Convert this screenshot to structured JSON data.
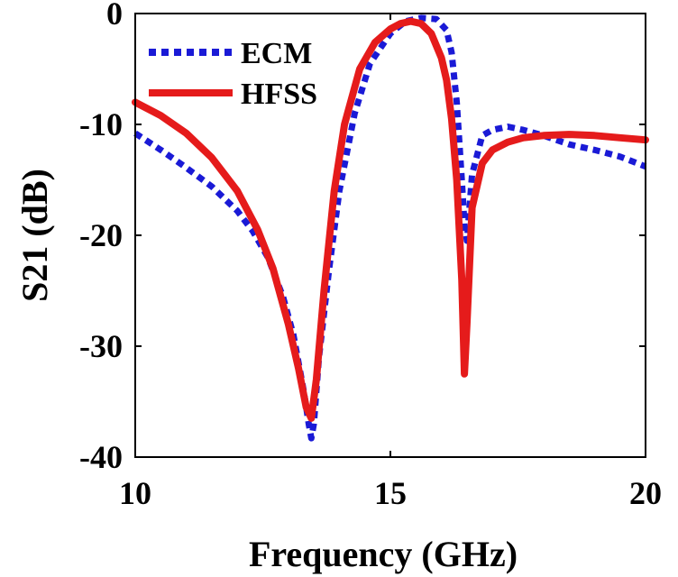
{
  "chart_data": {
    "type": "line",
    "xlabel": "Frequency (GHz)",
    "ylabel": "S21 (dB)",
    "xlim": [
      10,
      20
    ],
    "ylim": [
      -40,
      0
    ],
    "xticks": [
      10,
      15,
      20
    ],
    "yticks": [
      0,
      -10,
      -20,
      -30,
      -40
    ],
    "xtick_labels": [
      "10",
      "15",
      "20"
    ],
    "ytick_labels": [
      "0",
      "-10",
      "-20",
      "-30",
      "-40"
    ],
    "grid": false,
    "legend_position": "top-left",
    "series": [
      {
        "name": "ECM",
        "color": "#1a1ad6",
        "style": "dotted",
        "x": [
          10,
          10.5,
          11,
          11.5,
          12,
          12.3,
          12.6,
          12.9,
          13.1,
          13.3,
          13.4,
          13.45,
          13.5,
          13.6,
          13.8,
          14.0,
          14.3,
          14.6,
          15.0,
          15.3,
          15.6,
          15.9,
          16.1,
          16.2,
          16.3,
          16.4,
          16.45,
          16.5,
          16.6,
          16.8,
          17.0,
          17.3,
          17.6,
          18.0,
          18.5,
          19.0,
          19.5,
          20.0
        ],
        "y": [
          -10.8,
          -12.3,
          -13.9,
          -15.6,
          -17.8,
          -19.6,
          -22.0,
          -25.6,
          -29.0,
          -34.0,
          -37.0,
          -38.3,
          -37.0,
          -31.0,
          -23.0,
          -16.0,
          -9.0,
          -4.5,
          -1.8,
          -0.7,
          -0.4,
          -0.5,
          -1.5,
          -3.5,
          -8.0,
          -15.0,
          -19.0,
          -20.5,
          -14.5,
          -11.0,
          -10.5,
          -10.2,
          -10.5,
          -11.0,
          -11.8,
          -12.3,
          -12.9,
          -13.8
        ]
      },
      {
        "name": "HFSS",
        "color": "#e51b1b",
        "style": "solid",
        "x": [
          10,
          10.5,
          11,
          11.5,
          12,
          12.4,
          12.7,
          13.0,
          13.2,
          13.35,
          13.45,
          13.55,
          13.7,
          13.9,
          14.1,
          14.4,
          14.7,
          15.0,
          15.2,
          15.4,
          15.6,
          15.8,
          16.0,
          16.1,
          16.2,
          16.3,
          16.4,
          16.45,
          16.5,
          16.6,
          16.8,
          17.0,
          17.3,
          17.6,
          18.0,
          18.5,
          19.0,
          19.5,
          20.0
        ],
        "y": [
          -8.0,
          -9.2,
          -10.8,
          -13.0,
          -16.0,
          -19.5,
          -23.0,
          -28.0,
          -32.0,
          -35.5,
          -36.5,
          -33.0,
          -25.0,
          -16.0,
          -10.0,
          -5.0,
          -2.6,
          -1.4,
          -0.9,
          -0.7,
          -0.9,
          -1.8,
          -4.0,
          -6.0,
          -9.5,
          -15.0,
          -24.0,
          -32.5,
          -28.0,
          -17.5,
          -13.5,
          -12.3,
          -11.6,
          -11.2,
          -11.0,
          -10.9,
          -11.0,
          -11.2,
          -11.4
        ]
      }
    ]
  }
}
